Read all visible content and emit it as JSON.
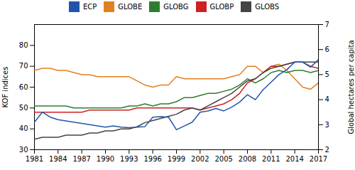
{
  "chart_data": {
    "type": "line",
    "x": [
      1981,
      1982,
      1983,
      1984,
      1985,
      1986,
      1987,
      1988,
      1989,
      1990,
      1991,
      1992,
      1993,
      1994,
      1995,
      1996,
      1997,
      1998,
      1999,
      2000,
      2001,
      2002,
      2003,
      2004,
      2005,
      2006,
      2007,
      2008,
      2009,
      2010,
      2011,
      2012,
      2013,
      2014,
      2015,
      2016,
      2017
    ],
    "xlim": [
      1981,
      2017
    ],
    "xticks": [
      1981,
      1984,
      1987,
      1990,
      1993,
      1996,
      1999,
      2002,
      2005,
      2008,
      2011,
      2014,
      2017
    ],
    "ylabel": "KOF indices",
    "ylim": [
      30,
      90
    ],
    "yticks": [
      30,
      40,
      50,
      60,
      70,
      80
    ],
    "y2label": "Global hectares per capita",
    "y2lim": [
      2,
      7
    ],
    "y2ticks": [
      2,
      3,
      4,
      5,
      6,
      7
    ],
    "grid": false,
    "legend": "top",
    "series": [
      {
        "name": "ECP",
        "color": "#2255aa",
        "axis": "y2",
        "values": [
          3.1,
          3.5,
          3.3,
          3.2,
          3.15,
          3.1,
          3.05,
          3.0,
          2.95,
          2.9,
          2.95,
          2.9,
          2.88,
          2.9,
          2.92,
          3.3,
          3.32,
          3.3,
          2.8,
          2.95,
          3.1,
          3.5,
          3.55,
          3.65,
          3.55,
          3.7,
          3.9,
          4.2,
          4.0,
          4.4,
          4.7,
          5.0,
          5.2,
          5.5,
          5.5,
          5.3,
          5.6
        ]
      },
      {
        "name": "GLOBE",
        "color": "#e08020",
        "values": [
          68,
          69,
          69,
          68,
          68,
          67,
          66,
          66,
          65,
          65,
          65,
          65,
          65,
          63,
          61,
          60,
          61,
          61,
          65,
          64,
          64,
          64,
          64,
          64,
          64,
          65,
          66,
          70,
          70,
          67,
          70,
          71,
          68,
          64,
          60,
          59,
          62
        ]
      },
      {
        "name": "GLOBG",
        "color": "#2e7d2e",
        "values": [
          51,
          51,
          51,
          51,
          51,
          50,
          50,
          50,
          50,
          50,
          50,
          50,
          51,
          51,
          52,
          51,
          52,
          52,
          53,
          55,
          55,
          56,
          57,
          57,
          58,
          59,
          61,
          64,
          62,
          64,
          67,
          68,
          67,
          68,
          68,
          67,
          68
        ]
      },
      {
        "name": "GLOBP",
        "color": "#cc2222",
        "values": [
          48,
          48,
          48,
          48,
          48,
          48,
          48,
          49,
          49,
          49,
          49,
          49,
          49,
          50,
          50,
          50,
          50,
          50,
          50,
          50,
          50,
          49,
          50,
          51,
          52,
          54,
          57,
          62,
          64,
          67,
          70,
          70,
          71,
          72,
          72,
          70,
          69
        ]
      },
      {
        "name": "GLOBS",
        "color": "#444444",
        "values": [
          35,
          36,
          36,
          36,
          37,
          37,
          37,
          38,
          38,
          39,
          39,
          40,
          40,
          41,
          43,
          44,
          45,
          46,
          47,
          49,
          50,
          49,
          51,
          53,
          55,
          57,
          60,
          63,
          64,
          67,
          69,
          70,
          71,
          72,
          72,
          72,
          72
        ]
      }
    ]
  }
}
